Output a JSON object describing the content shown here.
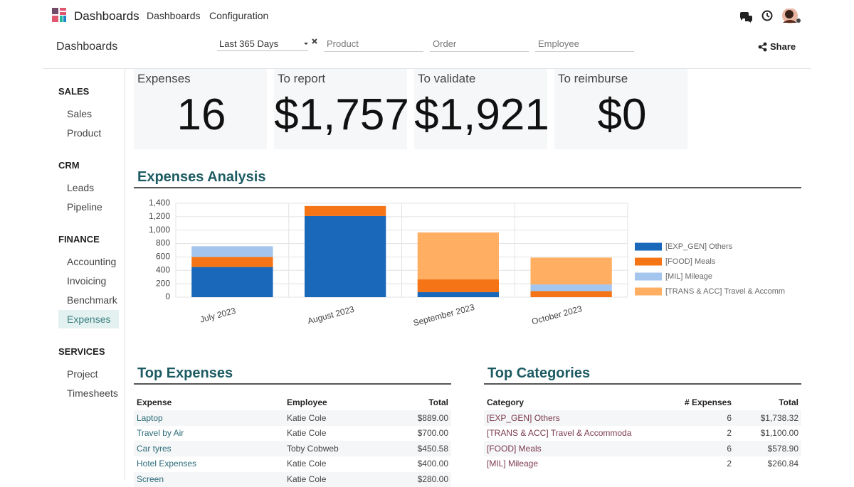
{
  "navbar": {
    "app": "Dashboards",
    "menu": [
      "Dashboards",
      "Configuration"
    ]
  },
  "control_panel": {
    "breadcrumb": "Dashboards",
    "date_filter": "Last 365 Days",
    "filter_placeholders": [
      "Product",
      "Order",
      "Employee"
    ],
    "share": "Share"
  },
  "sidebar": [
    {
      "title": "SALES",
      "items": [
        {
          "label": "Sales"
        },
        {
          "label": "Product"
        }
      ]
    },
    {
      "title": "CRM",
      "items": [
        {
          "label": "Leads"
        },
        {
          "label": "Pipeline"
        }
      ]
    },
    {
      "title": "FINANCE",
      "items": [
        {
          "label": "Accounting"
        },
        {
          "label": "Invoicing"
        },
        {
          "label": "Benchmark"
        },
        {
          "label": "Expenses",
          "active": true
        }
      ]
    },
    {
      "title": "SERVICES",
      "items": [
        {
          "label": "Project"
        },
        {
          "label": "Timesheets"
        }
      ]
    }
  ],
  "kpis": [
    {
      "label": "Expenses",
      "value": "16"
    },
    {
      "label": "To report",
      "value": "$1,757"
    },
    {
      "label": "To validate",
      "value": "$1,921"
    },
    {
      "label": "To reimburse",
      "value": "$0"
    }
  ],
  "chart_data": {
    "type": "stacked_bar",
    "title": "Expenses Analysis",
    "categories": [
      "July 2023",
      "August 2023",
      "September 2023",
      "October 2023"
    ],
    "series": [
      {
        "name": "[EXP_GEN] Others",
        "color": "#1a68b9",
        "values": [
          450,
          1210,
          75,
          0
        ]
      },
      {
        "name": "[FOOD] Meals",
        "color": "#f47416",
        "values": [
          150,
          150,
          190,
          90
        ]
      },
      {
        "name": "[MIL] Mileage",
        "color": "#a4c6ee",
        "values": [
          160,
          0,
          0,
          100
        ]
      },
      {
        "name": "[TRANS & ACC] Travel & Accomm",
        "color": "#ffae62",
        "values": [
          0,
          0,
          700,
          400
        ]
      }
    ],
    "ylim": [
      0,
      1400
    ],
    "yticks": [
      0,
      200,
      400,
      600,
      800,
      {
        "value": 1000,
        "label": "1,000"
      },
      {
        "value": 1200,
        "label": "1,200"
      },
      {
        "value": 1400,
        "label": "1,400"
      }
    ],
    "grid": true,
    "legend": "right"
  },
  "top_expenses": {
    "title": "Top Expenses",
    "columns": [
      "Expense",
      "Employee",
      "Total"
    ],
    "rows": [
      [
        "Laptop",
        "Katie Cole",
        "$889.00"
      ],
      [
        "Travel by Air",
        "Katie Cole",
        "$700.00"
      ],
      [
        "Car tyres",
        "Toby Cobweb",
        "$450.58"
      ],
      [
        "Hotel Expenses",
        "Katie Cole",
        "$400.00"
      ],
      [
        "Screen",
        "Katie Cole",
        "$280.00"
      ]
    ]
  },
  "top_categories": {
    "title": "Top Categories",
    "columns": [
      "Category",
      "# Expenses",
      "Total"
    ],
    "rows": [
      [
        "[EXP_GEN] Others",
        "6",
        "$1,738.32"
      ],
      [
        "[TRANS & ACC] Travel & Accommoda",
        "2",
        "$1,100.00"
      ],
      [
        "[FOOD] Meals",
        "6",
        "$578.90"
      ],
      [
        "[MIL] Mileage",
        "2",
        "$260.84"
      ]
    ]
  }
}
